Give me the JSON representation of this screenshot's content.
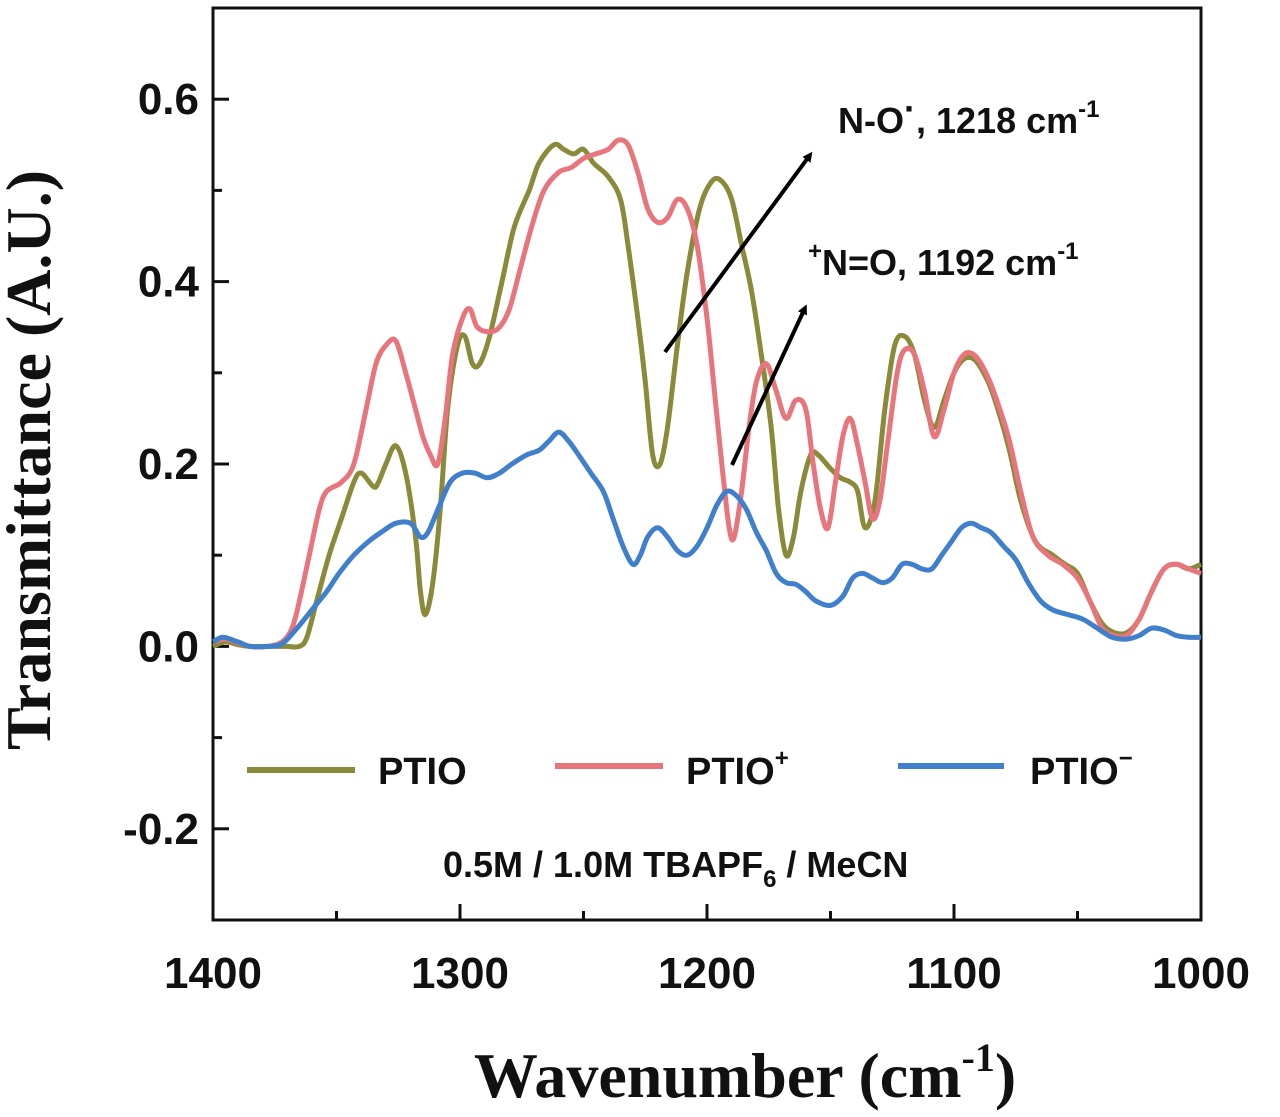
{
  "chart_data": {
    "type": "line",
    "title": "",
    "xlabel": "Wavenumber (cm",
    "xlabel_sup": "-1",
    "xlabel_close": ")",
    "ylabel": "Transmittance (A.U.)",
    "xlim": [
      1400,
      1000
    ],
    "ylim": [
      -0.3,
      0.7
    ],
    "x_reversed": true,
    "x_ticks": [
      1400,
      1300,
      1200,
      1100,
      1000
    ],
    "x_tick_labels": [
      "1400",
      "1300",
      "1200",
      "1100",
      "1000"
    ],
    "y_ticks": [
      -0.2,
      0.0,
      0.2,
      0.4,
      0.6
    ],
    "y_tick_labels": [
      "-0.2",
      "0.0",
      "0.2",
      "0.4",
      "0.6"
    ],
    "grid": false,
    "legend_position": "lower-center",
    "series": [
      {
        "name": "PTIO",
        "legend_main": "PTIO",
        "legend_sup": "",
        "color": "#8a8a3a",
        "points": [
          [
            1400,
            0.0
          ],
          [
            1395,
            0.005
          ],
          [
            1390,
            0.002
          ],
          [
            1385,
            0.0
          ],
          [
            1375,
            0.0
          ],
          [
            1370,
            0.0
          ],
          [
            1365,
            0.0
          ],
          [
            1362,
            0.01
          ],
          [
            1358,
            0.05
          ],
          [
            1353,
            0.1
          ],
          [
            1348,
            0.14
          ],
          [
            1343,
            0.18
          ],
          [
            1340,
            0.19
          ],
          [
            1335,
            0.175
          ],
          [
            1333,
            0.18
          ],
          [
            1330,
            0.2
          ],
          [
            1326,
            0.22
          ],
          [
            1322,
            0.19
          ],
          [
            1318,
            0.12
          ],
          [
            1316,
            0.06
          ],
          [
            1314,
            0.035
          ],
          [
            1311,
            0.07
          ],
          [
            1308,
            0.15
          ],
          [
            1305,
            0.26
          ],
          [
            1301,
            0.33
          ],
          [
            1298,
            0.34
          ],
          [
            1295,
            0.31
          ],
          [
            1292,
            0.31
          ],
          [
            1288,
            0.34
          ],
          [
            1283,
            0.4
          ],
          [
            1278,
            0.46
          ],
          [
            1272,
            0.5
          ],
          [
            1268,
            0.53
          ],
          [
            1262,
            0.55
          ],
          [
            1258,
            0.545
          ],
          [
            1254,
            0.54
          ],
          [
            1250,
            0.545
          ],
          [
            1246,
            0.53
          ],
          [
            1240,
            0.515
          ],
          [
            1235,
            0.49
          ],
          [
            1232,
            0.44
          ],
          [
            1228,
            0.36
          ],
          [
            1225,
            0.29
          ],
          [
            1222,
            0.21
          ],
          [
            1219,
            0.2
          ],
          [
            1216,
            0.24
          ],
          [
            1212,
            0.33
          ],
          [
            1208,
            0.41
          ],
          [
            1203,
            0.48
          ],
          [
            1198,
            0.51
          ],
          [
            1194,
            0.51
          ],
          [
            1190,
            0.49
          ],
          [
            1186,
            0.44
          ],
          [
            1182,
            0.39
          ],
          [
            1178,
            0.32
          ],
          [
            1174,
            0.24
          ],
          [
            1171,
            0.15
          ],
          [
            1168,
            0.1
          ],
          [
            1165,
            0.12
          ],
          [
            1162,
            0.17
          ],
          [
            1158,
            0.21
          ],
          [
            1155,
            0.21
          ],
          [
            1150,
            0.195
          ],
          [
            1146,
            0.185
          ],
          [
            1142,
            0.18
          ],
          [
            1139,
            0.17
          ],
          [
            1136,
            0.13
          ],
          [
            1132,
            0.16
          ],
          [
            1128,
            0.26
          ],
          [
            1124,
            0.33
          ],
          [
            1120,
            0.34
          ],
          [
            1116,
            0.32
          ],
          [
            1112,
            0.27
          ],
          [
            1108,
            0.24
          ],
          [
            1104,
            0.27
          ],
          [
            1100,
            0.3
          ],
          [
            1096,
            0.315
          ],
          [
            1092,
            0.315
          ],
          [
            1088,
            0.3
          ],
          [
            1084,
            0.275
          ],
          [
            1078,
            0.22
          ],
          [
            1073,
            0.16
          ],
          [
            1067,
            0.115
          ],
          [
            1060,
            0.1
          ],
          [
            1055,
            0.09
          ],
          [
            1050,
            0.08
          ],
          [
            1045,
            0.05
          ],
          [
            1040,
            0.025
          ],
          [
            1035,
            0.015
          ],
          [
            1030,
            0.015
          ],
          [
            1025,
            0.03
          ],
          [
            1020,
            0.06
          ],
          [
            1015,
            0.085
          ],
          [
            1010,
            0.09
          ],
          [
            1005,
            0.085
          ],
          [
            1000,
            0.09
          ]
        ]
      },
      {
        "name": "PTIO+",
        "legend_main": "PTIO",
        "legend_sup": "+",
        "color": "#e8747c",
        "points": [
          [
            1400,
            0.005
          ],
          [
            1395,
            0.008
          ],
          [
            1390,
            0.004
          ],
          [
            1385,
            0.0
          ],
          [
            1378,
            0.0
          ],
          [
            1372,
            0.005
          ],
          [
            1368,
            0.02
          ],
          [
            1365,
            0.05
          ],
          [
            1361,
            0.1
          ],
          [
            1357,
            0.15
          ],
          [
            1354,
            0.17
          ],
          [
            1348,
            0.18
          ],
          [
            1343,
            0.2
          ],
          [
            1338,
            0.26
          ],
          [
            1334,
            0.31
          ],
          [
            1330,
            0.33
          ],
          [
            1326,
            0.335
          ],
          [
            1322,
            0.3
          ],
          [
            1318,
            0.26
          ],
          [
            1315,
            0.23
          ],
          [
            1312,
            0.21
          ],
          [
            1309,
            0.2
          ],
          [
            1306,
            0.25
          ],
          [
            1303,
            0.32
          ],
          [
            1299,
            0.36
          ],
          [
            1296,
            0.37
          ],
          [
            1293,
            0.35
          ],
          [
            1288,
            0.345
          ],
          [
            1284,
            0.35
          ],
          [
            1280,
            0.37
          ],
          [
            1276,
            0.41
          ],
          [
            1271,
            0.46
          ],
          [
            1266,
            0.5
          ],
          [
            1260,
            0.52
          ],
          [
            1255,
            0.525
          ],
          [
            1250,
            0.535
          ],
          [
            1245,
            0.54
          ],
          [
            1240,
            0.545
          ],
          [
            1236,
            0.555
          ],
          [
            1232,
            0.55
          ],
          [
            1228,
            0.52
          ],
          [
            1224,
            0.48
          ],
          [
            1220,
            0.465
          ],
          [
            1216,
            0.47
          ],
          [
            1212,
            0.49
          ],
          [
            1208,
            0.48
          ],
          [
            1204,
            0.44
          ],
          [
            1200,
            0.36
          ],
          [
            1197,
            0.28
          ],
          [
            1194,
            0.2
          ],
          [
            1191,
            0.13
          ],
          [
            1189,
            0.12
          ],
          [
            1186,
            0.17
          ],
          [
            1183,
            0.24
          ],
          [
            1180,
            0.29
          ],
          [
            1176,
            0.31
          ],
          [
            1172,
            0.28
          ],
          [
            1168,
            0.25
          ],
          [
            1164,
            0.27
          ],
          [
            1160,
            0.26
          ],
          [
            1157,
            0.2
          ],
          [
            1154,
            0.15
          ],
          [
            1151,
            0.13
          ],
          [
            1148,
            0.18
          ],
          [
            1145,
            0.23
          ],
          [
            1142,
            0.25
          ],
          [
            1139,
            0.22
          ],
          [
            1136,
            0.18
          ],
          [
            1133,
            0.14
          ],
          [
            1130,
            0.16
          ],
          [
            1127,
            0.22
          ],
          [
            1123,
            0.3
          ],
          [
            1120,
            0.325
          ],
          [
            1116,
            0.32
          ],
          [
            1112,
            0.28
          ],
          [
            1108,
            0.23
          ],
          [
            1104,
            0.26
          ],
          [
            1100,
            0.3
          ],
          [
            1096,
            0.32
          ],
          [
            1092,
            0.32
          ],
          [
            1088,
            0.305
          ],
          [
            1084,
            0.28
          ],
          [
            1078,
            0.23
          ],
          [
            1073,
            0.17
          ],
          [
            1068,
            0.12
          ],
          [
            1062,
            0.1
          ],
          [
            1056,
            0.09
          ],
          [
            1050,
            0.075
          ],
          [
            1045,
            0.05
          ],
          [
            1040,
            0.02
          ],
          [
            1035,
            0.012
          ],
          [
            1030,
            0.012
          ],
          [
            1025,
            0.03
          ],
          [
            1020,
            0.06
          ],
          [
            1015,
            0.085
          ],
          [
            1010,
            0.09
          ],
          [
            1005,
            0.085
          ],
          [
            1000,
            0.08
          ]
        ]
      },
      {
        "name": "PTIO−",
        "legend_main": "PTIO",
        "legend_sup": "−",
        "color": "#3f7fcc",
        "points": [
          [
            1400,
            0.005
          ],
          [
            1396,
            0.01
          ],
          [
            1390,
            0.005
          ],
          [
            1385,
            0.0
          ],
          [
            1378,
            0.0
          ],
          [
            1372,
            0.003
          ],
          [
            1366,
            0.02
          ],
          [
            1360,
            0.04
          ],
          [
            1354,
            0.06
          ],
          [
            1349,
            0.08
          ],
          [
            1343,
            0.1
          ],
          [
            1337,
            0.115
          ],
          [
            1332,
            0.125
          ],
          [
            1326,
            0.135
          ],
          [
            1320,
            0.135
          ],
          [
            1316,
            0.12
          ],
          [
            1313,
            0.125
          ],
          [
            1309,
            0.15
          ],
          [
            1304,
            0.18
          ],
          [
            1299,
            0.19
          ],
          [
            1294,
            0.19
          ],
          [
            1289,
            0.185
          ],
          [
            1284,
            0.19
          ],
          [
            1279,
            0.2
          ],
          [
            1273,
            0.21
          ],
          [
            1268,
            0.215
          ],
          [
            1264,
            0.225
          ],
          [
            1260,
            0.235
          ],
          [
            1256,
            0.225
          ],
          [
            1252,
            0.21
          ],
          [
            1247,
            0.19
          ],
          [
            1242,
            0.17
          ],
          [
            1238,
            0.14
          ],
          [
            1234,
            0.11
          ],
          [
            1230,
            0.09
          ],
          [
            1227,
            0.1
          ],
          [
            1224,
            0.12
          ],
          [
            1220,
            0.13
          ],
          [
            1216,
            0.12
          ],
          [
            1212,
            0.105
          ],
          [
            1208,
            0.1
          ],
          [
            1204,
            0.11
          ],
          [
            1200,
            0.13
          ],
          [
            1196,
            0.155
          ],
          [
            1192,
            0.17
          ],
          [
            1188,
            0.165
          ],
          [
            1184,
            0.15
          ],
          [
            1180,
            0.125
          ],
          [
            1176,
            0.105
          ],
          [
            1172,
            0.08
          ],
          [
            1168,
            0.07
          ],
          [
            1164,
            0.068
          ],
          [
            1160,
            0.06
          ],
          [
            1156,
            0.05
          ],
          [
            1150,
            0.045
          ],
          [
            1145,
            0.055
          ],
          [
            1141,
            0.075
          ],
          [
            1137,
            0.08
          ],
          [
            1133,
            0.075
          ],
          [
            1129,
            0.07
          ],
          [
            1125,
            0.075
          ],
          [
            1121,
            0.09
          ],
          [
            1117,
            0.09
          ],
          [
            1113,
            0.085
          ],
          [
            1109,
            0.085
          ],
          [
            1105,
            0.1
          ],
          [
            1101,
            0.115
          ],
          [
            1097,
            0.13
          ],
          [
            1093,
            0.135
          ],
          [
            1089,
            0.13
          ],
          [
            1085,
            0.125
          ],
          [
            1080,
            0.11
          ],
          [
            1075,
            0.095
          ],
          [
            1070,
            0.07
          ],
          [
            1065,
            0.05
          ],
          [
            1060,
            0.04
          ],
          [
            1054,
            0.035
          ],
          [
            1048,
            0.03
          ],
          [
            1042,
            0.02
          ],
          [
            1036,
            0.01
          ],
          [
            1030,
            0.008
          ],
          [
            1025,
            0.012
          ],
          [
            1020,
            0.02
          ],
          [
            1015,
            0.018
          ],
          [
            1010,
            0.012
          ],
          [
            1005,
            0.01
          ],
          [
            1000,
            0.01
          ]
        ]
      }
    ],
    "annotations": [
      {
        "text_main": "N-O",
        "text_dot": "·",
        "text_rest": ", 1218 cm",
        "sup": "-1",
        "prefix_sup": ""
      },
      {
        "text_main": "N=O, 1192 cm",
        "text_dot": "",
        "text_rest": "",
        "sup": "-1",
        "prefix_sup": "+"
      }
    ],
    "condition_label": {
      "main": "0.5M / 1.0M TBAPF",
      "sub": "6",
      "rest": " / MeCN"
    }
  }
}
